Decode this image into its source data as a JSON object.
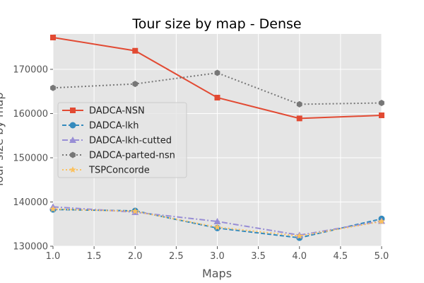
{
  "chart_data": {
    "type": "line",
    "title": "Tour size by map - Dense",
    "xlabel": "Maps",
    "ylabel": "Tour size by map",
    "xlim": [
      1.0,
      5.0
    ],
    "ylim": [
      130000,
      178000
    ],
    "x_ticks": [
      "1.0",
      "1.5",
      "2.0",
      "2.5",
      "3.0",
      "3.5",
      "4.0",
      "4.5",
      "5.0"
    ],
    "y_ticks": [
      "130000",
      "140000",
      "150000",
      "160000",
      "170000"
    ],
    "grid": true,
    "legend_position": "center-left",
    "x": [
      1,
      2,
      3,
      4,
      5
    ],
    "series": [
      {
        "name": "DADCA-NSN",
        "values": [
          177200,
          174200,
          163600,
          158900,
          159600
        ],
        "color": "#e24a33",
        "marker": "square",
        "line_style": "solid"
      },
      {
        "name": "DADCA-lkh",
        "values": [
          138300,
          138000,
          134100,
          131900,
          136200
        ],
        "color": "#348abd",
        "marker": "circle",
        "line_style": "dashed"
      },
      {
        "name": "DADCA-lkh-cutted",
        "values": [
          138900,
          137700,
          135600,
          132500,
          135700
        ],
        "color": "#988ed5",
        "marker": "triangle",
        "line_style": "dashdot"
      },
      {
        "name": "DADCA-parted-nsn",
        "values": [
          165800,
          166700,
          169200,
          162100,
          162400
        ],
        "color": "#777777",
        "marker": "hexagon",
        "line_style": "dotted"
      },
      {
        "name": "TSPConcorde",
        "values": [
          138400,
          137900,
          134300,
          132300,
          135600
        ],
        "color": "#fbc15e",
        "marker": "star",
        "line_style": "dotted"
      }
    ]
  }
}
